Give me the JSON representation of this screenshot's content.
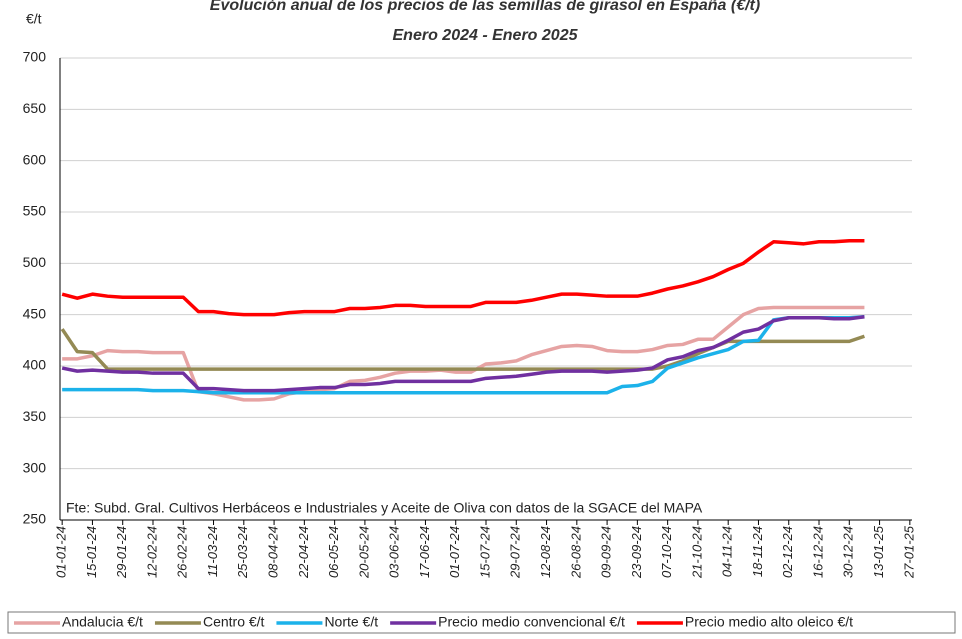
{
  "chart_data": {
    "type": "line",
    "title": "Evolución anual de los precios de las semillas de girasol en España (€/t)",
    "subtitle": "Enero 2024 - Enero 2025",
    "y_label": "€/t",
    "annotation": "Fte: Subd. Gral. Cultivos Herbáceos e Industriales y Aceite de Oliva con datos de la SGACE del MAPA",
    "x": [
      "01-01-24",
      "08-01-24",
      "15-01-24",
      "22-01-24",
      "29-01-24",
      "05-02-24",
      "12-02-24",
      "19-02-24",
      "26-02-24",
      "04-03-24",
      "11-03-24",
      "18-03-24",
      "25-03-24",
      "01-04-24",
      "08-04-24",
      "15-04-24",
      "22-04-24",
      "29-04-24",
      "06-05-24",
      "13-05-24",
      "20-05-24",
      "27-05-24",
      "03-06-24",
      "10-06-24",
      "17-06-24",
      "24-06-24",
      "01-07-24",
      "08-07-24",
      "15-07-24",
      "22-07-24",
      "29-07-24",
      "05-08-24",
      "12-08-24",
      "19-08-24",
      "26-08-24",
      "02-09-24",
      "09-09-24",
      "16-09-24",
      "23-09-24",
      "30-09-24",
      "07-10-24",
      "14-10-24",
      "21-10-24",
      "28-10-24",
      "04-11-24",
      "11-11-24",
      "18-11-24",
      "25-11-24",
      "02-12-24",
      "09-12-24",
      "16-12-24",
      "23-12-24",
      "30-12-24",
      "06-01-25"
    ],
    "series": [
      {
        "name": "Andalucia €/t",
        "color": "#e6a3a3",
        "values": [
          407,
          407,
          410,
          415,
          414,
          414,
          413,
          413,
          413,
          375,
          373,
          370,
          367,
          367,
          368,
          373,
          375,
          377,
          378,
          385,
          386,
          389,
          393,
          395,
          395,
          396,
          394,
          394,
          402,
          403,
          405,
          411,
          415,
          419,
          420,
          419,
          415,
          414,
          414,
          416,
          420,
          421,
          426,
          426,
          438,
          450,
          456,
          457,
          457,
          457,
          457,
          457,
          457,
          457
        ]
      },
      {
        "name": "Centro €/t",
        "color": "#948a54",
        "values": [
          436,
          414,
          413,
          397,
          397,
          397,
          397,
          397,
          397,
          397,
          397,
          397,
          397,
          397,
          397,
          397,
          397,
          397,
          397,
          397,
          397,
          397,
          397,
          397,
          397,
          397,
          397,
          397,
          397,
          397,
          397,
          397,
          397,
          397,
          397,
          397,
          397,
          397,
          397,
          397,
          400,
          405,
          412,
          418,
          424,
          424,
          424,
          424,
          424,
          424,
          424,
          424,
          424,
          429
        ]
      },
      {
        "name": "Norte €/t",
        "color": "#1cb2ea",
        "values": [
          377,
          377,
          377,
          377,
          377,
          377,
          376,
          376,
          376,
          375,
          374,
          374,
          374,
          374,
          374,
          374,
          374,
          374,
          374,
          374,
          374,
          374,
          374,
          374,
          374,
          374,
          374,
          374,
          374,
          374,
          374,
          374,
          374,
          374,
          374,
          374,
          374,
          380,
          381,
          385,
          398,
          403,
          408,
          412,
          416,
          424,
          425,
          445,
          447,
          447,
          447,
          447,
          447,
          448
        ]
      },
      {
        "name": "Precio medio convencional €/t",
        "color": "#7030a0",
        "values": [
          398,
          395,
          396,
          395,
          394,
          394,
          393,
          393,
          393,
          378,
          378,
          377,
          376,
          376,
          376,
          377,
          378,
          379,
          379,
          382,
          382,
          383,
          385,
          385,
          385,
          385,
          385,
          385,
          388,
          389,
          390,
          392,
          394,
          395,
          395,
          395,
          394,
          395,
          396,
          398,
          406,
          409,
          415,
          418,
          425,
          433,
          436,
          444,
          447,
          447,
          447,
          446,
          446,
          448
        ]
      },
      {
        "name": "Precio medio alto oleico €/t",
        "color": "#ff0000",
        "values": [
          470,
          466,
          470,
          468,
          467,
          467,
          467,
          467,
          467,
          453,
          453,
          451,
          450,
          450,
          450,
          452,
          453,
          453,
          453,
          456,
          456,
          457,
          459,
          459,
          458,
          458,
          458,
          458,
          462,
          462,
          462,
          464,
          467,
          470,
          470,
          469,
          468,
          468,
          468,
          471,
          475,
          478,
          482,
          487,
          494,
          500,
          511,
          521,
          520,
          519,
          521,
          521,
          522,
          522
        ]
      }
    ],
    "xlim": [
      "31-12-23",
      "28-01-25"
    ],
    "xticks": [
      "01-01-24",
      "15-01-24",
      "29-01-24",
      "12-02-24",
      "26-02-24",
      "11-03-24",
      "25-03-24",
      "08-04-24",
      "22-04-24",
      "06-05-24",
      "20-05-24",
      "03-06-24",
      "17-06-24",
      "01-07-24",
      "15-07-24",
      "29-07-24",
      "12-08-24",
      "26-08-24",
      "09-09-24",
      "23-09-24",
      "07-10-24",
      "21-10-24",
      "04-11-24",
      "18-11-24",
      "02-12-24",
      "16-12-24",
      "30-12-24",
      "13-01-25",
      "27-01-25"
    ],
    "ylim": [
      250,
      700
    ],
    "yticks": [
      250,
      300,
      350,
      400,
      450,
      500,
      550,
      600,
      650,
      700
    ],
    "grid": true
  }
}
